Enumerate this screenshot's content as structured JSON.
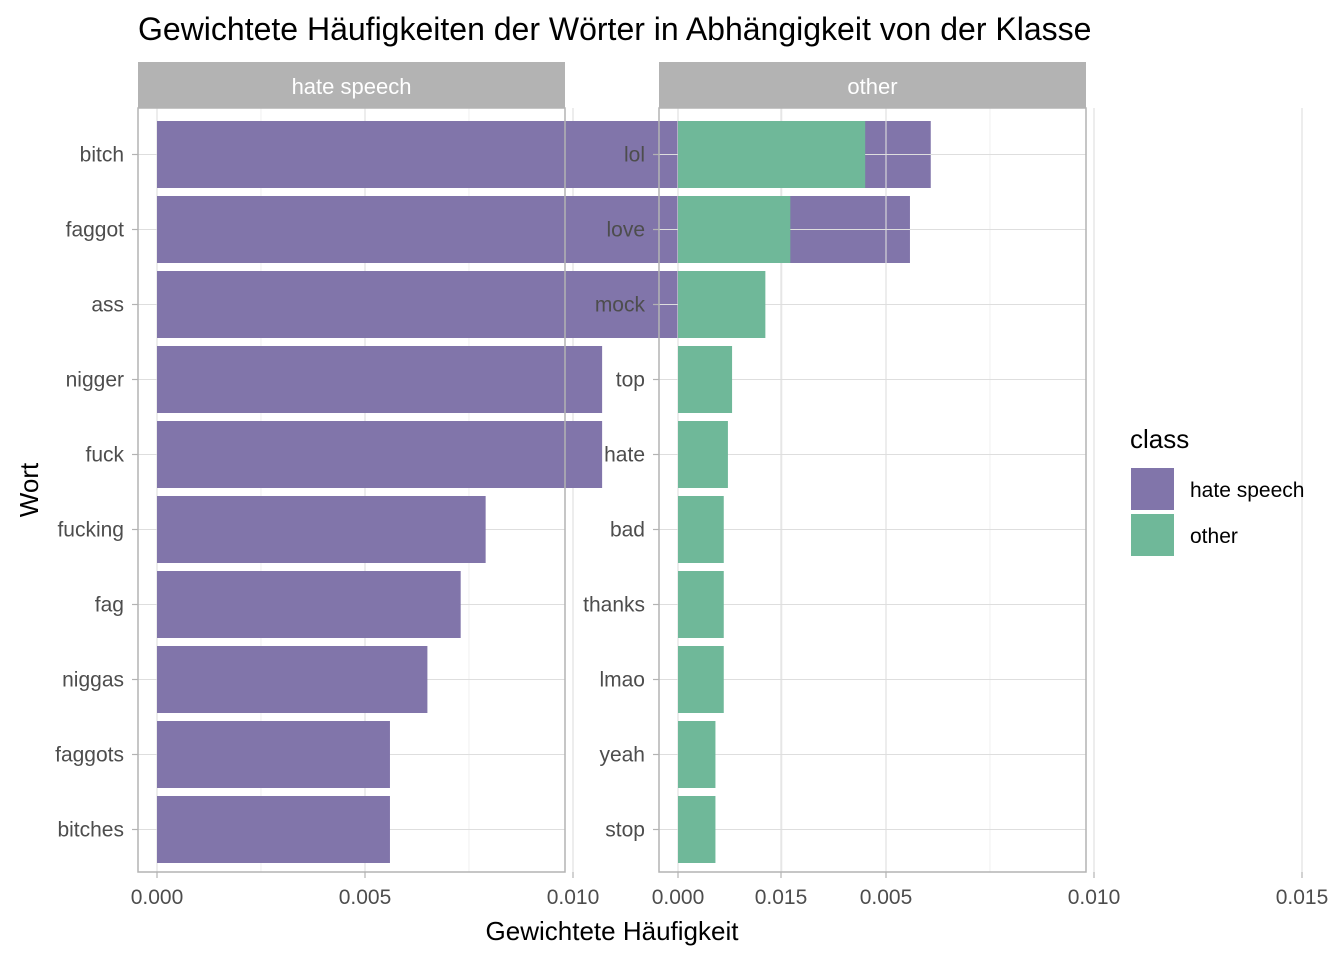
{
  "chart_data": {
    "type": "bar",
    "orientation": "horizontal",
    "title": "Gewichtete Häufigkeiten der Wörter in Abhängigkeit von der Klasse",
    "xlabel": "Gewichtete Häufigkeit",
    "ylabel": "Wort",
    "xlim": [
      0,
      0.0195
    ],
    "x_ticks": [
      "0.000",
      "0.005",
      "0.010",
      "0.015"
    ],
    "x_tick_values": [
      0,
      0.005,
      0.01,
      0.015
    ],
    "grid": true,
    "legend": {
      "title": "class",
      "placement": "right",
      "entries": [
        {
          "label": "hate speech",
          "color": "#8175aa"
        },
        {
          "label": "other",
          "color": "#6fb899"
        }
      ]
    },
    "panels": [
      {
        "strip": "hate speech",
        "color": "#8175aa",
        "categories": [
          "bitch",
          "faggot",
          "ass",
          "nigger",
          "fuck",
          "fucking",
          "fag",
          "niggas",
          "faggots",
          "bitches"
        ],
        "values": [
          0.0186,
          0.0181,
          0.0127,
          0.0107,
          0.0107,
          0.0079,
          0.0073,
          0.0065,
          0.0056,
          0.0056
        ]
      },
      {
        "strip": "other",
        "color": "#6fb899",
        "categories": [
          "lol",
          "love",
          "mock",
          "top",
          "hate",
          "bad",
          "thanks",
          "lmao",
          "yeah",
          "stop"
        ],
        "values": [
          0.0045,
          0.0027,
          0.0021,
          0.0013,
          0.0012,
          0.0011,
          0.0011,
          0.0011,
          0.0009,
          0.0009
        ]
      }
    ]
  }
}
